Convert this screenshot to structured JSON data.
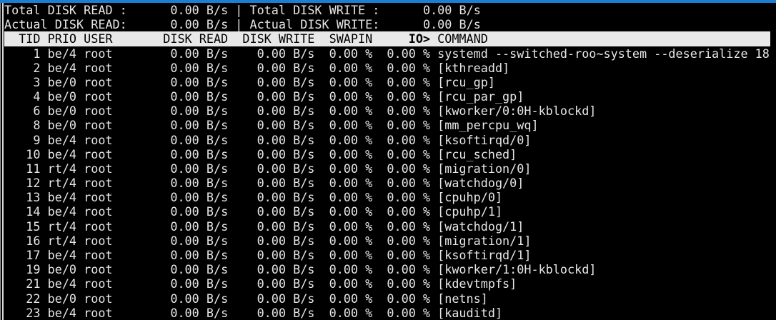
{
  "summary": {
    "total_read_label": "Total DISK READ :",
    "total_read_value": "0.00 B/s",
    "total_write_label": "Total DISK WRITE :",
    "total_write_value": "0.00 B/s",
    "actual_read_label": "Actual DISK READ:",
    "actual_read_value": "0.00 B/s",
    "actual_write_label": "Actual DISK WRITE:",
    "actual_write_value": "0.00 B/s",
    "separator": "|"
  },
  "header": {
    "tid": "TID",
    "prio": "PRIO",
    "user": "USER",
    "disk_read": "DISK READ",
    "disk_write": "DISK WRITE",
    "swapin": "SWAPIN",
    "io": "IO>",
    "command": "COMMAND"
  },
  "rows": [
    {
      "tid": "1",
      "prio": "be/4",
      "user": "root",
      "disk_read": "0.00 B/s",
      "disk_write": "0.00 B/s",
      "swapin": "0.00 %",
      "io": "0.00 %",
      "command": "systemd --switched-roo~system --deserialize 18"
    },
    {
      "tid": "2",
      "prio": "be/4",
      "user": "root",
      "disk_read": "0.00 B/s",
      "disk_write": "0.00 B/s",
      "swapin": "0.00 %",
      "io": "0.00 %",
      "command": "[kthreadd]"
    },
    {
      "tid": "3",
      "prio": "be/0",
      "user": "root",
      "disk_read": "0.00 B/s",
      "disk_write": "0.00 B/s",
      "swapin": "0.00 %",
      "io": "0.00 %",
      "command": "[rcu_gp]"
    },
    {
      "tid": "4",
      "prio": "be/0",
      "user": "root",
      "disk_read": "0.00 B/s",
      "disk_write": "0.00 B/s",
      "swapin": "0.00 %",
      "io": "0.00 %",
      "command": "[rcu_par_gp]"
    },
    {
      "tid": "6",
      "prio": "be/0",
      "user": "root",
      "disk_read": "0.00 B/s",
      "disk_write": "0.00 B/s",
      "swapin": "0.00 %",
      "io": "0.00 %",
      "command": "[kworker/0:0H-kblockd]"
    },
    {
      "tid": "8",
      "prio": "be/0",
      "user": "root",
      "disk_read": "0.00 B/s",
      "disk_write": "0.00 B/s",
      "swapin": "0.00 %",
      "io": "0.00 %",
      "command": "[mm_percpu_wq]"
    },
    {
      "tid": "9",
      "prio": "be/4",
      "user": "root",
      "disk_read": "0.00 B/s",
      "disk_write": "0.00 B/s",
      "swapin": "0.00 %",
      "io": "0.00 %",
      "command": "[ksoftirqd/0]"
    },
    {
      "tid": "10",
      "prio": "be/4",
      "user": "root",
      "disk_read": "0.00 B/s",
      "disk_write": "0.00 B/s",
      "swapin": "0.00 %",
      "io": "0.00 %",
      "command": "[rcu_sched]"
    },
    {
      "tid": "11",
      "prio": "rt/4",
      "user": "root",
      "disk_read": "0.00 B/s",
      "disk_write": "0.00 B/s",
      "swapin": "0.00 %",
      "io": "0.00 %",
      "command": "[migration/0]"
    },
    {
      "tid": "12",
      "prio": "rt/4",
      "user": "root",
      "disk_read": "0.00 B/s",
      "disk_write": "0.00 B/s",
      "swapin": "0.00 %",
      "io": "0.00 %",
      "command": "[watchdog/0]"
    },
    {
      "tid": "13",
      "prio": "be/4",
      "user": "root",
      "disk_read": "0.00 B/s",
      "disk_write": "0.00 B/s",
      "swapin": "0.00 %",
      "io": "0.00 %",
      "command": "[cpuhp/0]"
    },
    {
      "tid": "14",
      "prio": "be/4",
      "user": "root",
      "disk_read": "0.00 B/s",
      "disk_write": "0.00 B/s",
      "swapin": "0.00 %",
      "io": "0.00 %",
      "command": "[cpuhp/1]"
    },
    {
      "tid": "15",
      "prio": "rt/4",
      "user": "root",
      "disk_read": "0.00 B/s",
      "disk_write": "0.00 B/s",
      "swapin": "0.00 %",
      "io": "0.00 %",
      "command": "[watchdog/1]"
    },
    {
      "tid": "16",
      "prio": "rt/4",
      "user": "root",
      "disk_read": "0.00 B/s",
      "disk_write": "0.00 B/s",
      "swapin": "0.00 %",
      "io": "0.00 %",
      "command": "[migration/1]"
    },
    {
      "tid": "17",
      "prio": "be/4",
      "user": "root",
      "disk_read": "0.00 B/s",
      "disk_write": "0.00 B/s",
      "swapin": "0.00 %",
      "io": "0.00 %",
      "command": "[ksoftirqd/1]"
    },
    {
      "tid": "19",
      "prio": "be/0",
      "user": "root",
      "disk_read": "0.00 B/s",
      "disk_write": "0.00 B/s",
      "swapin": "0.00 %",
      "io": "0.00 %",
      "command": "[kworker/1:0H-kblockd]"
    },
    {
      "tid": "21",
      "prio": "be/4",
      "user": "root",
      "disk_read": "0.00 B/s",
      "disk_write": "0.00 B/s",
      "swapin": "0.00 %",
      "io": "0.00 %",
      "command": "[kdevtmpfs]"
    },
    {
      "tid": "22",
      "prio": "be/0",
      "user": "root",
      "disk_read": "0.00 B/s",
      "disk_write": "0.00 B/s",
      "swapin": "0.00 %",
      "io": "0.00 %",
      "command": "[netns]"
    },
    {
      "tid": "23",
      "prio": "be/4",
      "user": "root",
      "disk_read": "0.00 B/s",
      "disk_write": "0.00 B/s",
      "swapin": "0.00 %",
      "io": "0.00 %",
      "command": "[kauditd]"
    }
  ],
  "colors": {
    "accent_blue": "#1B7ED2",
    "background": "#000000",
    "text": "#E6E6E6",
    "header_bg": "#E8E8E8",
    "header_text": "#000000",
    "border_light": "#D6D6D6",
    "border_mid": "#9E9E9E"
  }
}
